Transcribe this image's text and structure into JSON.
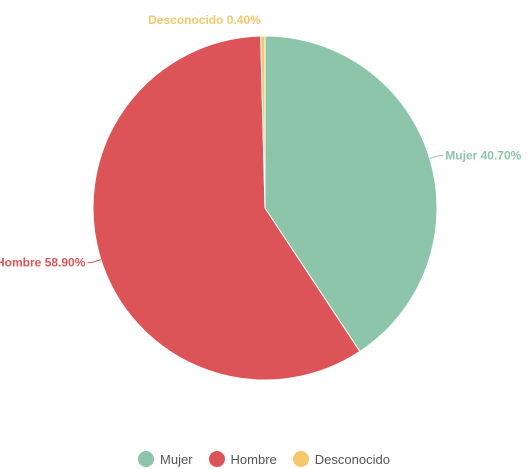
{
  "chart_data": {
    "type": "pie",
    "categories": [
      "Mujer",
      "Hombre",
      "Desconocido"
    ],
    "values": [
      40.7,
      58.9,
      0.4
    ],
    "data_labels": [
      "Mujer 40.70%",
      "Hombre 58.90%",
      "Desconocido 0.40%"
    ],
    "colors": [
      "#8cc5a9",
      "#dc5457",
      "#f3c76b"
    ],
    "title": "",
    "legend": "bottom-center"
  },
  "legend": {
    "items": [
      {
        "label": "Mujer",
        "color": "#8cc5a9"
      },
      {
        "label": "Hombre",
        "color": "#dc5457"
      },
      {
        "label": "Desconocido",
        "color": "#f3c76b"
      }
    ]
  }
}
